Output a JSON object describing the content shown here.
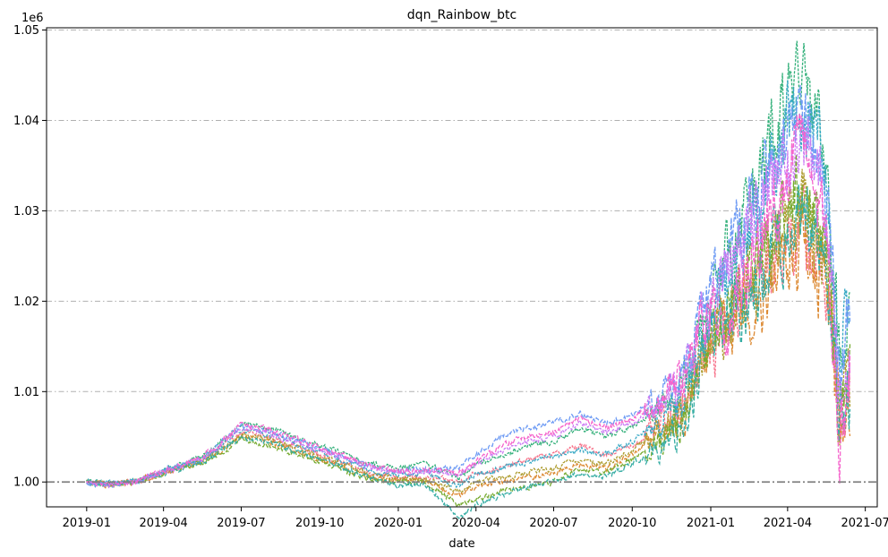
{
  "chart_data": {
    "type": "line",
    "title": "dqn_Rainbow_btc",
    "xlabel": "date",
    "ylabel": "",
    "y_offset_label": "1e6",
    "xlim": [
      "2018-11-15",
      "2021-07-15"
    ],
    "ylim": [
      0.99725,
      1.05025
    ],
    "x_ticks": [
      "2019-01",
      "2019-04",
      "2019-07",
      "2019-10",
      "2020-01",
      "2020-04",
      "2020-07",
      "2020-10",
      "2021-01",
      "2021-04",
      "2021-07"
    ],
    "y_ticks": [
      "1.00",
      "1.01",
      "1.02",
      "1.03",
      "1.04",
      "1.05"
    ],
    "y_tick_values": [
      1.0,
      1.01,
      1.02,
      1.03,
      1.04,
      1.05
    ],
    "grid": "horizontal dash-dot",
    "baseline": 1.0,
    "legend": "none",
    "anchors_x": [
      "2019-01-01",
      "2019-02-01",
      "2019-03-01",
      "2019-04-01",
      "2019-05-15",
      "2019-06-01",
      "2019-07-01",
      "2019-08-01",
      "2019-09-01",
      "2019-10-01",
      "2019-11-01",
      "2019-12-01",
      "2020-01-01",
      "2020-02-01",
      "2020-03-12",
      "2020-04-01",
      "2020-05-01",
      "2020-06-01",
      "2020-07-01",
      "2020-08-01",
      "2020-09-01",
      "2020-10-01",
      "2020-11-01",
      "2020-12-01",
      "2021-01-01",
      "2021-01-15",
      "2021-02-01",
      "2021-02-21",
      "2021-03-15",
      "2021-04-01",
      "2021-04-14",
      "2021-05-10",
      "2021-05-20",
      "2021-06-01",
      "2021-06-13"
    ],
    "series": [
      {
        "color": "#f77189",
        "values": [
          1.0,
          0.9997,
          1.0001,
          1.001,
          1.0025,
          1.0035,
          1.0055,
          1.005,
          1.004,
          1.003,
          1.002,
          1.001,
          1.0005,
          1.0005,
          1.0,
          1.001,
          1.0015,
          1.0025,
          1.003,
          1.004,
          1.003,
          1.004,
          1.006,
          1.009,
          1.015,
          1.017,
          1.02,
          1.022,
          1.025,
          1.027,
          1.028,
          1.024,
          1.02,
          1.008,
          1.012
        ]
      },
      {
        "color": "#dc8932",
        "values": [
          1.0,
          0.9997,
          1.0001,
          1.001,
          1.0023,
          1.003,
          1.005,
          1.0045,
          1.0035,
          1.0025,
          1.0015,
          1.0005,
          1.0002,
          1.0002,
          0.9985,
          0.9995,
          1.0,
          1.0005,
          1.001,
          1.002,
          1.0015,
          1.003,
          1.005,
          1.008,
          1.015,
          1.016,
          1.019,
          1.021,
          1.023,
          1.025,
          1.026,
          1.023,
          1.018,
          1.006,
          1.009
        ]
      },
      {
        "color": "#ae9d31",
        "values": [
          1.0,
          0.9997,
          1.0001,
          1.001,
          1.0024,
          1.0032,
          1.0052,
          1.0048,
          1.0038,
          1.0028,
          1.0018,
          1.0008,
          1.0004,
          1.0003,
          0.999,
          1.0,
          1.0005,
          1.001,
          1.0015,
          1.0025,
          1.002,
          1.0035,
          1.0055,
          1.0085,
          1.016,
          1.0175,
          1.021,
          1.023,
          1.026,
          1.029,
          1.031,
          1.027,
          1.022,
          1.007,
          1.011
        ]
      },
      {
        "color": "#77ab31",
        "values": [
          1.0,
          0.9997,
          1.0001,
          1.001,
          1.0022,
          1.0028,
          1.0048,
          1.0042,
          1.0032,
          1.0022,
          1.0012,
          1.0002,
          1.0,
          1.0,
          0.9975,
          0.998,
          0.999,
          0.9995,
          1.0,
          1.0015,
          1.001,
          1.0025,
          1.0045,
          1.0075,
          1.017,
          1.018,
          1.022,
          1.024,
          1.028,
          1.03,
          1.032,
          1.029,
          1.024,
          1.009,
          1.013
        ]
      },
      {
        "color": "#33b07a",
        "values": [
          1.0,
          0.9997,
          1.0001,
          1.0012,
          1.0028,
          1.004,
          1.0065,
          1.006,
          1.005,
          1.004,
          1.003,
          1.002,
          1.0015,
          1.002,
          1.0005,
          1.002,
          1.003,
          1.004,
          1.0045,
          1.006,
          1.005,
          1.006,
          1.008,
          1.011,
          1.02,
          1.023,
          1.028,
          1.032,
          1.038,
          1.042,
          1.044,
          1.04,
          1.03,
          1.012,
          1.018
        ]
      },
      {
        "color": "#36ada4",
        "values": [
          1.0,
          0.9997,
          1.0001,
          1.001,
          1.0022,
          1.003,
          1.005,
          1.0045,
          1.0035,
          1.0025,
          1.0015,
          1.0005,
          0.9995,
          0.9998,
          0.996,
          0.9975,
          0.9985,
          0.9995,
          1.0,
          1.001,
          1.0005,
          1.002,
          1.004,
          1.007,
          1.016,
          1.017,
          1.02,
          1.022,
          1.025,
          1.027,
          1.029,
          1.026,
          1.022,
          1.008,
          1.01
        ]
      },
      {
        "color": "#38a9c5",
        "values": [
          1.0,
          0.9997,
          1.0001,
          1.0011,
          1.0025,
          1.0036,
          1.0058,
          1.0053,
          1.0043,
          1.0033,
          1.0023,
          1.0012,
          1.0008,
          1.001,
          0.9995,
          1.0008,
          1.0015,
          1.0022,
          1.0028,
          1.0035,
          1.003,
          1.0045,
          1.0065,
          1.0095,
          1.018,
          1.021,
          1.026,
          1.03,
          1.035,
          1.04,
          1.042,
          1.038,
          1.028,
          1.015,
          1.02
        ]
      },
      {
        "color": "#6e9bf4",
        "values": [
          1.0,
          0.9997,
          1.0001,
          1.0012,
          1.0027,
          1.0038,
          1.0062,
          1.0057,
          1.0047,
          1.0037,
          1.0027,
          1.0017,
          1.0012,
          1.0015,
          1.0015,
          1.003,
          1.005,
          1.006,
          1.0065,
          1.0075,
          1.0065,
          1.0075,
          1.0095,
          1.0125,
          1.021,
          1.024,
          1.028,
          1.031,
          1.036,
          1.038,
          1.04,
          1.036,
          1.027,
          1.014,
          1.019
        ]
      },
      {
        "color": "#cc7af4",
        "values": [
          1.0,
          0.9997,
          1.0001,
          1.0011,
          1.0026,
          1.0037,
          1.006,
          1.0055,
          1.0045,
          1.0035,
          1.0025,
          1.0015,
          1.001,
          1.0012,
          1.0008,
          1.002,
          1.0035,
          1.0045,
          1.005,
          1.0065,
          1.0055,
          1.0065,
          1.0085,
          1.0115,
          1.02,
          1.022,
          1.026,
          1.029,
          1.033,
          1.035,
          1.037,
          1.033,
          1.025,
          1.01,
          1.015
        ]
      },
      {
        "color": "#f565cc",
        "values": [
          1.0,
          0.9997,
          1.0001,
          1.0011,
          1.0027,
          1.0038,
          1.0064,
          1.0058,
          1.0048,
          1.0038,
          1.0028,
          1.0018,
          1.0012,
          1.0015,
          1.001,
          1.0022,
          1.004,
          1.005,
          1.0055,
          1.007,
          1.006,
          1.007,
          1.009,
          1.012,
          1.019,
          1.015,
          1.023,
          1.026,
          1.03,
          1.034,
          1.036,
          1.031,
          1.022,
          1.005,
          1.013
        ]
      }
    ]
  }
}
